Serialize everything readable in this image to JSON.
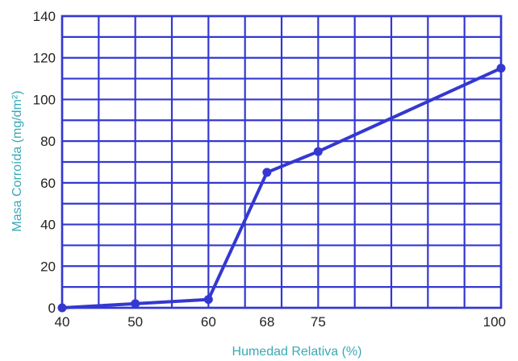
{
  "chart_data": {
    "type": "line",
    "xlabel": "Humedad Relativa (%)",
    "ylabel": "Masa Corroída (mg/dm²)",
    "xlim": [
      40,
      100
    ],
    "ylim": [
      0,
      140
    ],
    "x_ticks": [
      40,
      50,
      60,
      68,
      75,
      100
    ],
    "x_tick_labels": [
      "40",
      "50",
      "60",
      "68",
      "75",
      "100"
    ],
    "y_ticks": [
      0,
      20,
      40,
      60,
      80,
      100,
      120,
      140
    ],
    "y_tick_labels": [
      "0",
      "20",
      "40",
      "60",
      "80",
      "100",
      "120",
      "140"
    ],
    "grid": true,
    "series": [
      {
        "x": [
          40,
          50,
          60,
          68,
          75,
          100
        ],
        "y": [
          0,
          2,
          4,
          65,
          75,
          115
        ],
        "color": "#3438d0"
      }
    ],
    "colors": {
      "grid": "#3438d0",
      "line": "#3438d0",
      "axis_title": "#3aa9b7"
    }
  }
}
